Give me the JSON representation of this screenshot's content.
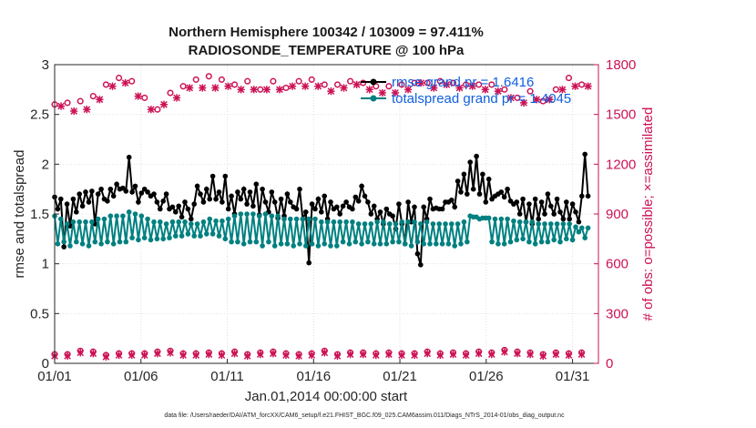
{
  "chart_data": {
    "type": "line",
    "title_line1": "Northern Hemisphere 100342 / 103009 = 97.411%",
    "title_line2": "RADIOSONDE_TEMPERATURE @ 100 hPa",
    "xlabel": "Jan.01,2014 00:00:00 start",
    "ylabel": "rmse and totalspread",
    "ylabel_right": "# of obs: o=possible; ×=assimilated",
    "xlim": [
      0,
      31.5
    ],
    "ylim": [
      0,
      3
    ],
    "ylim_right": [
      0,
      1800
    ],
    "x_ticks": [
      0,
      5,
      10,
      15,
      20,
      25,
      30
    ],
    "x_tick_labels": [
      "01/01",
      "01/06",
      "01/11",
      "01/16",
      "01/21",
      "01/26",
      "01/31"
    ],
    "y_tick_labels": [
      "0",
      "0.5",
      "1",
      "1.5",
      "2",
      "2.5",
      "3"
    ],
    "y_right_tick_labels": [
      "0",
      "300",
      "600",
      "900",
      "1200",
      "1500",
      "1800"
    ],
    "footnote": "data file: /Users/raeder/DAI/ATM_forcXX/CAM6_setup/f.e21.FHIST_BGC.f09_025.CAM6assim.011/Diags_NTrS_2014-01/obs_diag_output.nc",
    "legend": [
      {
        "label": "rmse grand pr = 1.6416",
        "color": "#000000",
        "marker": "circle"
      },
      {
        "label": "totalspread grand pr = 1.4045",
        "color": "#008080",
        "marker": "circle"
      }
    ],
    "series": [
      {
        "name": "rmse",
        "axis": "left",
        "color": "#000000",
        "values": [
          1.67,
          1.55,
          1.65,
          1.17,
          1.6,
          1.38,
          1.65,
          1.52,
          1.7,
          1.58,
          1.72,
          1.62,
          1.73,
          1.4,
          1.7,
          1.75,
          1.65,
          1.63,
          1.75,
          1.68,
          1.8,
          1.75,
          1.76,
          1.73,
          2.07,
          1.72,
          1.78,
          1.62,
          1.71,
          1.75,
          1.72,
          1.68,
          1.7,
          1.62,
          1.55,
          1.63,
          1.7,
          1.55,
          1.57,
          1.52,
          1.58,
          1.47,
          1.62,
          1.55,
          1.45,
          1.6,
          1.78,
          1.7,
          1.62,
          1.75,
          1.65,
          1.88,
          1.65,
          1.72,
          1.62,
          1.88,
          1.55,
          1.68,
          1.5,
          1.72,
          1.65,
          1.75,
          1.6,
          1.72,
          1.58,
          1.8,
          1.49,
          1.75,
          1.62,
          1.52,
          1.72,
          1.62,
          1.46,
          1.65,
          1.48,
          1.7,
          1.62,
          1.57,
          1.55,
          1.75,
          1.45,
          1.52,
          1.01,
          1.6,
          1.55,
          1.65,
          1.52,
          1.68,
          1.45,
          1.62,
          1.55,
          1.57,
          1.5,
          1.58,
          1.62,
          1.57,
          1.55,
          1.67,
          1.63,
          1.78,
          1.68,
          1.62,
          1.5,
          1.58,
          1.45,
          1.52,
          1.4,
          1.55,
          1.5,
          1.48,
          1.35,
          1.6,
          1.4,
          1.2,
          1.62,
          1.42,
          1.57,
          1.1,
          0.99,
          1.57,
          1.45,
          1.65,
          1.55,
          1.56,
          1.55,
          1.55,
          1.62,
          1.62,
          1.64,
          1.57,
          1.83,
          1.72,
          1.9,
          1.7,
          2.02,
          1.75,
          2.08,
          1.7,
          1.9,
          1.62,
          1.85,
          1.65,
          1.68,
          1.7,
          1.72,
          1.67,
          1.75,
          1.63,
          1.6,
          1.62,
          1.5,
          1.65,
          1.42,
          1.6,
          1.4,
          1.65,
          1.45,
          1.62,
          1.5,
          1.7,
          1.58,
          1.5,
          1.65,
          1.52,
          1.45,
          1.62,
          1.45,
          1.6,
          1.52,
          1.42,
          1.68,
          2.1,
          1.68
        ]
      },
      {
        "name": "totalspread",
        "axis": "left",
        "color": "#008080",
        "values": [
          1.48,
          1.2,
          1.45,
          1.22,
          1.4,
          1.18,
          1.42,
          1.22,
          1.42,
          1.2,
          1.42,
          1.18,
          1.42,
          1.22,
          1.45,
          1.2,
          1.45,
          1.22,
          1.48,
          1.2,
          1.48,
          1.22,
          1.48,
          1.22,
          1.52,
          1.26,
          1.5,
          1.24,
          1.48,
          1.26,
          1.45,
          1.24,
          1.42,
          1.25,
          1.42,
          1.25,
          1.4,
          1.26,
          1.42,
          1.28,
          1.42,
          1.28,
          1.42,
          1.3,
          1.4,
          1.28,
          1.4,
          1.28,
          1.42,
          1.3,
          1.45,
          1.3,
          1.43,
          1.28,
          1.43,
          1.25,
          1.45,
          1.22,
          1.48,
          1.22,
          1.5,
          1.2,
          1.5,
          1.22,
          1.5,
          1.22,
          1.48,
          1.18,
          1.5,
          1.22,
          1.48,
          1.18,
          1.48,
          1.2,
          1.45,
          1.2,
          1.45,
          1.18,
          1.45,
          1.2,
          1.45,
          1.18,
          1.45,
          1.2,
          1.45,
          1.18,
          1.42,
          1.2,
          1.42,
          1.18,
          1.42,
          1.18,
          1.42,
          1.22,
          1.42,
          1.2,
          1.42,
          1.22,
          1.4,
          1.2,
          1.4,
          1.22,
          1.4,
          1.2,
          1.42,
          1.2,
          1.42,
          1.2,
          1.4,
          1.22,
          1.4,
          1.22,
          1.42,
          1.2,
          1.42,
          1.18,
          1.42,
          1.22,
          1.4,
          1.2,
          1.42,
          1.2,
          1.4,
          1.2,
          1.4,
          1.2,
          1.4,
          1.2,
          1.4,
          1.18,
          1.4,
          1.2,
          1.42,
          1.22,
          1.48,
          1.47,
          1.47,
          1.45,
          1.46,
          1.46,
          1.46,
          1.22,
          1.45,
          1.2,
          1.45,
          1.2,
          1.45,
          1.22,
          1.43,
          1.24,
          1.42,
          1.25,
          1.42,
          1.22,
          1.42,
          1.2,
          1.4,
          1.22,
          1.4,
          1.22,
          1.4,
          1.24,
          1.4,
          1.22,
          1.4,
          1.25,
          1.4,
          1.24,
          1.37,
          1.32,
          1.36,
          1.26,
          1.36
        ]
      },
      {
        "name": "possible",
        "axis": "right",
        "color": "#cc1155",
        "values": [
          1560,
          1570,
          1580,
          1540,
          1570,
          1520,
          1550,
          1570,
          1580,
          1540,
          1560,
          1590,
          1610,
          1650,
          1620,
          1660,
          1680,
          1650,
          1700,
          1710,
          1720,
          1690,
          1720,
          1680,
          1700,
          1660,
          1640,
          1620,
          1600,
          1590,
          1560,
          1580,
          1530,
          1560,
          1590,
          1600,
          1630,
          1610,
          1630,
          1650,
          1670,
          1660,
          1690,
          1680,
          1710,
          1700,
          1690,
          1710,
          1730,
          1710,
          1690,
          1700,
          1710,
          1690,
          1700,
          1690,
          1680,
          1710,
          1680,
          1690,
          1700,
          1690,
          1680,
          1670,
          1650,
          1660,
          1680,
          1690,
          1700,
          1690,
          1680,
          1700,
          1660,
          1680,
          1700,
          1690,
          1700,
          1680,
          1700,
          1690,
          1710,
          1690,
          1700,
          1690,
          1680,
          1700,
          1670,
          1700,
          1680,
          1700,
          1690,
          1710,
          1700,
          1720,
          1710,
          1700,
          1690,
          1700,
          1680,
          1690,
          1670,
          1680,
          1660,
          1690,
          1670,
          1690,
          1660,
          1690,
          1680,
          1700,
          1680,
          1700,
          1690,
          1710,
          1720,
          1700,
          1690,
          1670,
          1690,
          1680,
          1700,
          1690,
          1710,
          1700,
          1690,
          1700,
          1690,
          1700,
          1680,
          1690,
          1700,
          1690,
          1680,
          1690,
          1680,
          1700,
          1680,
          1690,
          1670,
          1660,
          1650,
          1640,
          1630,
          1620,
          1600,
          1610,
          1600,
          1620,
          1640,
          1650,
          1620,
          1600,
          1580,
          1600,
          1620,
          1640,
          1650,
          1670,
          1680,
          1700,
          1720,
          1720,
          1700,
          1690,
          1680,
          1720,
          1700
        ]
      },
      {
        "name": "assimilated",
        "axis": "right",
        "color": "#cc1155",
        "values": [
          1520,
          1540,
          1550,
          1510,
          1540,
          1490,
          1520,
          1540,
          1550,
          1510,
          1530,
          1560,
          1580,
          1620,
          1590,
          1630,
          1650,
          1620,
          1670,
          1680,
          1690,
          1660,
          1690,
          1650,
          1670,
          1630,
          1610,
          1590,
          1570,
          1560,
          1530,
          1550,
          1500,
          1530,
          1560,
          1570,
          1600,
          1580,
          1600,
          1620,
          1640,
          1630,
          1660,
          1650,
          1680,
          1670,
          1660,
          1680,
          1700,
          1680,
          1660,
          1670,
          1680,
          1660,
          1670,
          1660,
          1650,
          1680,
          1650,
          1660,
          1670,
          1660,
          1650,
          1640,
          1620,
          1630,
          1650,
          1660,
          1670,
          1660,
          1650,
          1670,
          1630,
          1650,
          1670,
          1660,
          1670,
          1650,
          1670,
          1660,
          1680,
          1660,
          1670,
          1660,
          1650,
          1670,
          1640,
          1670,
          1650,
          1670,
          1660,
          1680,
          1670,
          1690,
          1680,
          1670,
          1660,
          1670,
          1650,
          1660,
          1640,
          1650,
          1630,
          1660,
          1640,
          1660,
          1630,
          1660,
          1650,
          1670,
          1650,
          1670,
          1660,
          1680,
          1690,
          1670,
          1660,
          1640,
          1660,
          1650,
          1670,
          1660,
          1680,
          1670,
          1660,
          1670,
          1660,
          1670,
          1650,
          1660,
          1670,
          1660,
          1650,
          1660,
          1650,
          1670,
          1650,
          1660,
          1640,
          1630,
          1620,
          1610,
          1600,
          1590,
          1570,
          1580,
          1570,
          1590,
          1610,
          1620,
          1590,
          1570,
          1550,
          1570,
          1590,
          1610,
          1620,
          1640,
          1650,
          1670,
          1690,
          1690,
          1670,
          1660,
          1650,
          1690,
          1670
        ]
      },
      {
        "name": "low-count-possible",
        "axis": "right",
        "color": "#cc1155",
        "values": [
          55,
          35,
          50,
          30,
          55,
          40,
          60,
          45,
          75,
          30,
          65,
          40,
          70,
          45,
          55,
          35,
          50,
          30,
          55,
          40,
          60,
          35,
          70,
          45,
          60,
          40,
          55,
          35,
          60,
          40,
          65,
          45,
          70,
          40,
          55,
          35,
          75,
          45,
          65,
          40,
          60,
          35,
          55,
          40,
          60,
          45,
          70,
          40,
          65,
          50,
          80,
          45,
          60,
          35,
          65,
          45,
          70,
          40,
          60,
          35,
          55,
          45,
          75,
          40,
          65,
          40,
          60,
          35,
          70,
          45,
          75,
          40,
          60,
          35,
          65,
          40,
          55,
          45,
          70,
          35,
          60,
          40,
          65,
          45,
          75,
          40,
          60,
          35,
          55,
          40,
          60,
          40,
          65,
          40,
          80,
          45,
          65,
          35,
          70,
          45,
          60,
          40,
          55,
          40,
          65,
          40,
          75,
          45,
          60,
          40,
          80,
          35,
          60,
          40,
          65,
          45,
          70,
          40,
          55,
          35,
          60,
          45,
          75,
          40,
          65,
          35,
          55,
          40,
          60,
          40,
          65,
          45,
          70,
          40,
          60,
          35,
          65,
          40,
          70,
          45,
          80,
          45,
          85,
          50,
          70,
          40,
          75,
          45,
          65,
          40,
          60,
          35,
          55,
          40,
          60,
          45,
          65,
          40,
          70,
          40,
          60,
          35,
          55,
          35,
          65,
          45,
          80
        ]
      }
    ]
  }
}
